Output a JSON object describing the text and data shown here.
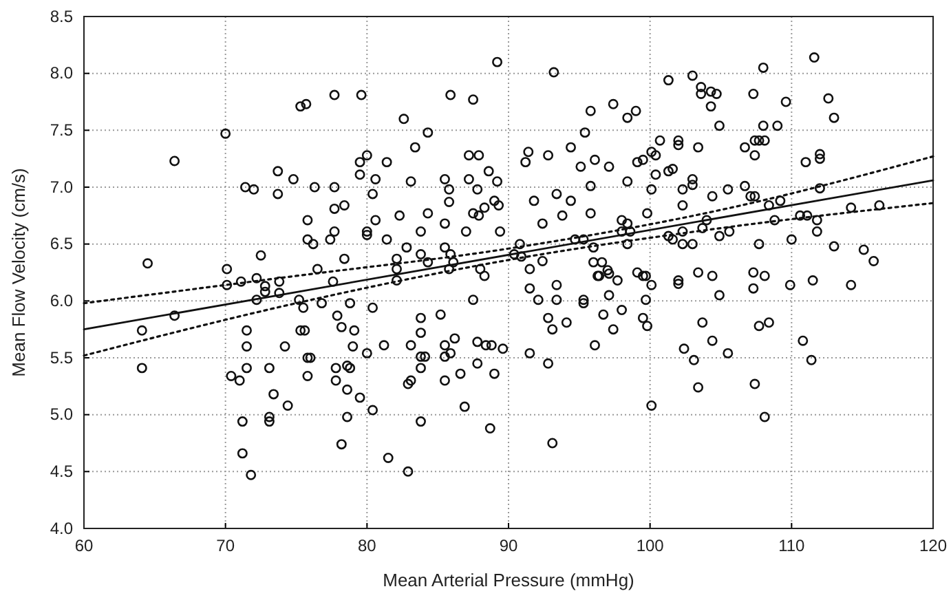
{
  "chart_data": {
    "type": "scatter",
    "xlabel": "Mean Arterial Pressure (mmHg)",
    "ylabel": "Mean Flow Velocity (cm/s)",
    "xlim": [
      60,
      120
    ],
    "ylim": [
      4,
      8.5
    ],
    "xticks": [
      60,
      70,
      80,
      90,
      100,
      110,
      120
    ],
    "yticks": [
      {
        "value": 4,
        "label": "4.0"
      },
      {
        "value": 4.5,
        "label": "4.5"
      },
      {
        "value": 5,
        "label": "5.0"
      },
      {
        "value": 5.5,
        "label": "5.5"
      },
      {
        "value": 6,
        "label": "6.0"
      },
      {
        "value": 6.5,
        "label": "6.5"
      },
      {
        "value": 7,
        "label": "7.0"
      },
      {
        "value": 7.5,
        "label": "7.5"
      },
      {
        "value": 8,
        "label": "8.0"
      },
      {
        "value": 8.5,
        "label": "8.5"
      }
    ],
    "grid": true,
    "series": [
      {
        "color": "#111111",
        "marker": "circle",
        "x": [
          64.5,
          64.1,
          64.1,
          66.4,
          70.1,
          70.1,
          71.1,
          72.2,
          72.2,
          72.8,
          72.8,
          73.8,
          73.8,
          71.5,
          71.5,
          70.4,
          71.0,
          71.5,
          71.2,
          71.2,
          71.8,
          73.1,
          73.1,
          73.1,
          73.4,
          74.4,
          74.2,
          75.2,
          75.5,
          75.3,
          75.6,
          76.5,
          75.8,
          76.0,
          75.8,
          76.8,
          77.6,
          77.9,
          78.2,
          78.8,
          79.1,
          79.0,
          80.0,
          77.8,
          77.8,
          78.6,
          78.8,
          78.6,
          79.5,
          78.6,
          78.2,
          80.4,
          80.4,
          66.4,
          70.0,
          71.4,
          72.0,
          73.7,
          73.7,
          74.8,
          75.3,
          75.7,
          77.7,
          79.6,
          76.3,
          77.7,
          75.8,
          77.7,
          78.4,
          79.5,
          79.5,
          80.0,
          75.8,
          76.2,
          77.4,
          77.7,
          80.0,
          80.0,
          72.5,
          78.4,
          80.6,
          80.4,
          80.6,
          89.2,
          93.2,
          85.9,
          87.5,
          82.6,
          84.3,
          81.4,
          83.4,
          83.1,
          87.2,
          87.9,
          85.5,
          87.2,
          88.6,
          89.2,
          85.8,
          87.8,
          85.8,
          88.3,
          89.0,
          89.3,
          87.5,
          87.9,
          84.3,
          82.3,
          85.5,
          83.8,
          87.0,
          89.4,
          81.4,
          82.8,
          85.5,
          85.9,
          83.8,
          82.1,
          84.3,
          82.1,
          85.8,
          86.1,
          88.0,
          88.3,
          90.8,
          90.4,
          90.9,
          91.5,
          92.4,
          91.2,
          91.4,
          92.8,
          94.4,
          95.1,
          96.1,
          97.1,
          95.4,
          95.8,
          97.4,
          98.4,
          99.0,
          101.3,
          100.7,
          100.1,
          99.1,
          99.5,
          100.4,
          98.4,
          100.4,
          95.8,
          93.4,
          91.8,
          94.4,
          100.1,
          95.8,
          93.8,
          92.4,
          98.0,
          98.4,
          99.8,
          98.0,
          98.6,
          98.4,
          94.7,
          95.3,
          96.0,
          96.0,
          96.6,
          97.0,
          96.3,
          99.1,
          99.7,
          82.1,
          91.5,
          92.1,
          93.4,
          93.4,
          96.4,
          97.1,
          97.7,
          97.1,
          95.3,
          95.3,
          99.5,
          100.1,
          99.7,
          96.7,
          98.0,
          97.4,
          99.5,
          99.8,
          96.1,
          92.8,
          93.1,
          94.1,
          91.5,
          92.8,
          93.1,
          100.1,
          81.2,
          81.5,
          82.9,
          83.8,
          83.8,
          83.1,
          83.8,
          84.1,
          83.8,
          82.9,
          83.1,
          83.8,
          85.2,
          85.5,
          86.2,
          85.9,
          85.5,
          85.5,
          86.6,
          86.9,
          87.5,
          87.8,
          88.4,
          88.8,
          87.8,
          89.0,
          89.6,
          88.7,
          111.6,
          108.0,
          103.0,
          103.6,
          103.6,
          104.3,
          104.7,
          104.3,
          107.3,
          109.6,
          112.6,
          113.0,
          104.9,
          108.0,
          109.0,
          102.0,
          102.0,
          103.4,
          107.4,
          107.7,
          108.1,
          106.7,
          107.4,
          112.0,
          112.0,
          111.0,
          101.3,
          101.6,
          103.0,
          103.0,
          102.3,
          102.3,
          105.5,
          104.4,
          106.7,
          107.1,
          107.4,
          108.4,
          109.2,
          112.0,
          108.8,
          110.6,
          111.1,
          111.8,
          111.8,
          114.2,
          116.2,
          104.0,
          103.7,
          101.3,
          101.6,
          102.3,
          102.3,
          103.0,
          104.9,
          105.6,
          107.7,
          110.0,
          113.0,
          115.1,
          115.8,
          102.0,
          102.0,
          103.4,
          104.4,
          107.3,
          107.3,
          108.1,
          109.9,
          111.5,
          114.2,
          104.9,
          103.7,
          107.7,
          108.4,
          104.4,
          102.4,
          103.1,
          105.5,
          110.8,
          111.4,
          103.4,
          107.4,
          108.1
        ],
        "values": [
          6.33,
          5.74,
          5.41,
          5.87,
          6.28,
          6.14,
          6.17,
          6.2,
          6.01,
          6.13,
          6.08,
          6.17,
          6.07,
          5.74,
          5.6,
          5.34,
          5.3,
          5.41,
          4.94,
          4.66,
          4.47,
          5.41,
          4.98,
          4.94,
          5.18,
          5.08,
          5.6,
          6.01,
          5.94,
          5.74,
          5.74,
          6.28,
          5.5,
          5.5,
          5.34,
          5.98,
          6.17,
          5.87,
          5.77,
          5.98,
          5.74,
          5.6,
          5.54,
          5.41,
          5.3,
          5.43,
          5.41,
          5.22,
          5.15,
          4.98,
          4.74,
          5.94,
          5.04,
          7.23,
          7.47,
          7.0,
          6.98,
          7.14,
          6.94,
          7.07,
          7.71,
          7.73,
          7.81,
          7.81,
          7.0,
          7.0,
          6.71,
          6.81,
          6.84,
          7.22,
          7.11,
          7.28,
          6.54,
          6.5,
          6.54,
          6.61,
          6.61,
          6.58,
          6.4,
          6.37,
          7.07,
          6.94,
          6.71,
          8.1,
          8.01,
          7.81,
          7.77,
          7.6,
          7.48,
          7.22,
          7.35,
          7.05,
          7.28,
          7.28,
          7.07,
          7.07,
          7.14,
          7.05,
          6.98,
          6.98,
          6.87,
          6.82,
          6.88,
          6.84,
          6.77,
          6.75,
          6.77,
          6.75,
          6.68,
          6.61,
          6.61,
          6.61,
          6.54,
          6.47,
          6.47,
          6.41,
          6.41,
          6.37,
          6.34,
          6.28,
          6.28,
          6.34,
          6.28,
          6.22,
          6.5,
          6.41,
          6.39,
          6.28,
          6.35,
          7.22,
          7.31,
          7.28,
          7.35,
          7.18,
          7.24,
          7.18,
          7.48,
          7.67,
          7.73,
          7.61,
          7.67,
          7.94,
          7.41,
          7.31,
          7.22,
          7.24,
          7.28,
          7.05,
          7.11,
          7.01,
          6.94,
          6.88,
          6.88,
          6.98,
          6.77,
          6.75,
          6.68,
          6.71,
          6.68,
          6.77,
          6.61,
          6.61,
          6.5,
          6.54,
          6.54,
          6.47,
          6.34,
          6.34,
          6.27,
          6.22,
          6.25,
          6.22,
          6.18,
          6.11,
          6.01,
          6.14,
          6.01,
          6.22,
          6.24,
          6.18,
          6.05,
          6.01,
          5.98,
          6.22,
          6.14,
          6.01,
          5.88,
          5.92,
          5.75,
          5.85,
          5.78,
          5.61,
          5.85,
          5.75,
          5.81,
          5.54,
          5.45,
          4.75,
          5.08,
          5.61,
          4.62,
          4.5,
          5.85,
          5.72,
          5.61,
          5.51,
          5.51,
          5.41,
          5.27,
          5.3,
          4.94,
          5.88,
          5.61,
          5.67,
          5.54,
          5.51,
          5.3,
          5.36,
          5.07,
          6.01,
          5.64,
          5.61,
          5.61,
          5.45,
          5.36,
          5.58,
          4.88,
          8.14,
          8.05,
          7.98,
          7.88,
          7.82,
          7.84,
          7.82,
          7.71,
          7.82,
          7.75,
          7.78,
          7.61,
          7.54,
          7.54,
          7.54,
          7.41,
          7.37,
          7.35,
          7.41,
          7.41,
          7.41,
          7.35,
          7.28,
          7.29,
          7.25,
          7.22,
          7.14,
          7.16,
          7.07,
          7.02,
          6.98,
          6.84,
          6.98,
          6.92,
          7.01,
          6.92,
          6.92,
          6.84,
          6.88,
          6.99,
          6.71,
          6.75,
          6.75,
          6.71,
          6.61,
          6.82,
          6.84,
          6.71,
          6.64,
          6.57,
          6.54,
          6.61,
          6.5,
          6.5,
          6.57,
          6.61,
          6.5,
          6.54,
          6.48,
          6.45,
          6.35,
          6.18,
          6.15,
          6.25,
          6.22,
          6.25,
          6.11,
          6.22,
          6.14,
          6.18,
          6.14,
          6.05,
          5.81,
          5.78,
          5.81,
          5.65,
          5.58,
          5.48,
          5.54,
          5.65,
          5.48,
          5.24,
          5.27,
          4.98
        ]
      },
      {
        "type": "line",
        "color": "#111111",
        "line_style": "solid",
        "marker": "none",
        "x": [
          60,
          120
        ],
        "values": [
          5.75,
          7.06
        ]
      },
      {
        "type": "line",
        "color": "#111111",
        "line_style": "dotted",
        "marker": "none",
        "x": [
          60,
          75,
          90,
          105,
          120
        ],
        "values": [
          5.98,
          6.22,
          6.46,
          6.8,
          7.27
        ]
      },
      {
        "type": "line",
        "color": "#111111",
        "line_style": "dotted",
        "marker": "none",
        "x": [
          60,
          75,
          90,
          105,
          120
        ],
        "values": [
          5.52,
          5.98,
          6.36,
          6.64,
          6.86
        ]
      }
    ]
  }
}
